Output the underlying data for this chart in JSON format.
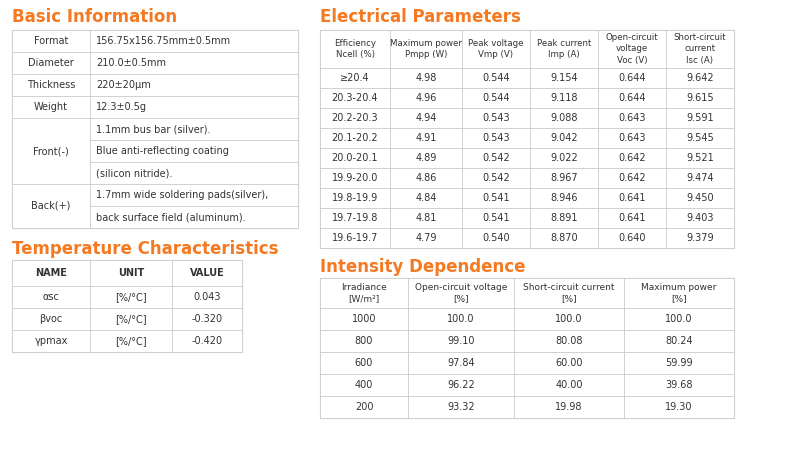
{
  "bg_color": "#ffffff",
  "orange_color": "#f47920",
  "text_color": "#333333",
  "border_color": "#c8c8c8",
  "title_basic": "Basic Information",
  "title_temp": "Temperature Characteristics",
  "title_elec": "Electrical Parameters",
  "title_intensity": "Intensity Dependence",
  "basic_left_groups": [
    [
      "Format",
      1
    ],
    [
      "Diameter",
      1
    ],
    [
      "Thickness",
      1
    ],
    [
      "Weight",
      1
    ],
    [
      "Front(-)",
      3
    ],
    [
      "Back(+)",
      2
    ]
  ],
  "basic_right_values": [
    "156.75x156.75mm±0.5mm",
    "210.0±0.5mm",
    "220±20μm",
    "12.3±0.5g",
    "1.1mm bus bar (silver).",
    "Blue anti-reflecting coating",
    "(silicon nitride).",
    "1.7mm wide soldering pads(silver),",
    "back surface field (aluminum)."
  ],
  "temp_headers": [
    "NAME",
    "UNIT",
    "VALUE"
  ],
  "temp_name_col": [
    "αsc",
    "βvoc",
    "γpmax"
  ],
  "temp_name_sub": [
    "sc",
    "voc",
    "pmax"
  ],
  "temp_name_base": [
    "α",
    "β",
    "γ"
  ],
  "temp_unit_col": [
    "[%/°C]",
    "[%/°C]",
    "[%/°C]"
  ],
  "temp_value_col": [
    "0.043",
    "-0.320",
    "-0.420"
  ],
  "elec_headers": [
    "Efficiency\nNcell (%)",
    "Maximum power\nPmpp (W)",
    "Peak voltage\nVmp (V)",
    "Peak current\nImp (A)",
    "Open-circuit\nvoltage\nVoc (V)",
    "Short-circuit\ncurrent\nIsc (A)"
  ],
  "elec_rows": [
    [
      "≥20.4",
      "4.98",
      "0.544",
      "9.154",
      "0.644",
      "9.642"
    ],
    [
      "20.3-20.4",
      "4.96",
      "0.544",
      "9.118",
      "0.644",
      "9.615"
    ],
    [
      "20.2-20.3",
      "4.94",
      "0.543",
      "9.088",
      "0.643",
      "9.591"
    ],
    [
      "20.1-20.2",
      "4.91",
      "0.543",
      "9.042",
      "0.643",
      "9.545"
    ],
    [
      "20.0-20.1",
      "4.89",
      "0.542",
      "9.022",
      "0.642",
      "9.521"
    ],
    [
      "19.9-20.0",
      "4.86",
      "0.542",
      "8.967",
      "0.642",
      "9.474"
    ],
    [
      "19.8-19.9",
      "4.84",
      "0.541",
      "8.946",
      "0.641",
      "9.450"
    ],
    [
      "19.7-19.8",
      "4.81",
      "0.541",
      "8.891",
      "0.641",
      "9.403"
    ],
    [
      "19.6-19.7",
      "4.79",
      "0.540",
      "8.870",
      "0.640",
      "9.379"
    ]
  ],
  "intensity_headers": [
    "Irradiance\n[W/m²]",
    "Open-circuit voltage\n[%]",
    "Short-circuit current\n[%]",
    "Maximum power\n[%]"
  ],
  "intensity_rows": [
    [
      "1000",
      "100.0",
      "100.0",
      "100.0"
    ],
    [
      "800",
      "99.10",
      "80.08",
      "80.24"
    ],
    [
      "600",
      "97.84",
      "60.00",
      "59.99"
    ],
    [
      "400",
      "96.22",
      "40.00",
      "39.68"
    ],
    [
      "200",
      "93.32",
      "19.98",
      "19.30"
    ]
  ]
}
